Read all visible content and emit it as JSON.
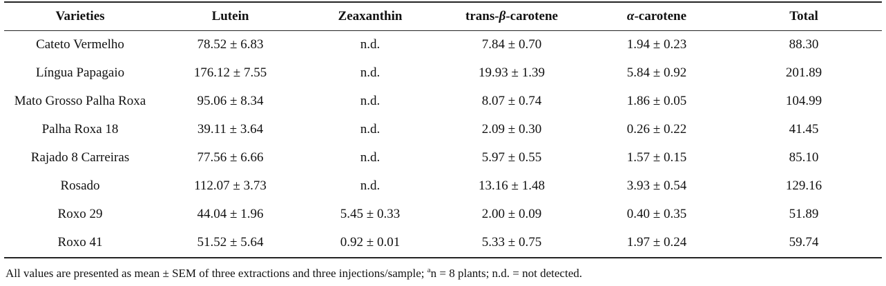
{
  "table": {
    "headers": [
      {
        "key": "varieties",
        "parts": [
          {
            "text": "Varieties"
          }
        ]
      },
      {
        "key": "lutein",
        "parts": [
          {
            "text": "Lutein"
          }
        ]
      },
      {
        "key": "zeaxanthin",
        "parts": [
          {
            "text": "Zeaxanthin"
          }
        ]
      },
      {
        "key": "trans_beta_carotene",
        "parts": [
          {
            "text": "trans-"
          },
          {
            "text": "β",
            "italic": true
          },
          {
            "text": "-carotene"
          }
        ]
      },
      {
        "key": "alpha_carotene",
        "parts": [
          {
            "text": "α",
            "italic": true
          },
          {
            "text": "-carotene"
          }
        ]
      },
      {
        "key": "total",
        "parts": [
          {
            "text": "Total"
          }
        ]
      }
    ],
    "rows": [
      [
        "Cateto Vermelho",
        "78.52 ± 6.83",
        "n.d.",
        "7.84 ± 0.70",
        "1.94 ± 0.23",
        "88.30"
      ],
      [
        "Língua Papagaio",
        "176.12 ± 7.55",
        "n.d.",
        "19.93 ± 1.39",
        "5.84 ± 0.92",
        "201.89"
      ],
      [
        "Mato Grosso Palha Roxa",
        "95.06 ± 8.34",
        "n.d.",
        "8.07 ± 0.74",
        "1.86 ± 0.05",
        "104.99"
      ],
      [
        "Palha Roxa 18",
        "39.11 ± 3.64",
        "n.d.",
        "2.09 ± 0.30",
        "0.26 ± 0.22",
        "41.45"
      ],
      [
        "Rajado 8 Carreiras",
        "77.56 ± 6.66",
        "n.d.",
        "5.97 ± 0.55",
        "1.57 ± 0.15",
        "85.10"
      ],
      [
        "Rosado",
        "112.07 ± 3.73",
        "n.d.",
        "13.16 ± 1.48",
        "3.93 ± 0.54",
        "129.16"
      ],
      [
        "Roxo 29",
        "44.04 ± 1.96",
        "5.45 ± 0.33",
        "2.00 ± 0.09",
        "0.40 ± 0.35",
        "51.89"
      ],
      [
        "Roxo 41",
        "51.52 ± 5.64",
        "0.92 ± 0.01",
        "5.33 ± 0.75",
        "1.97 ± 0.24",
        "59.74"
      ]
    ]
  },
  "footnote": {
    "before": "All values are presented as mean ± SEM of three extractions and three injections/sample; ",
    "sup": "a",
    "after": "n = 8 plants; n.d. = not detected."
  }
}
